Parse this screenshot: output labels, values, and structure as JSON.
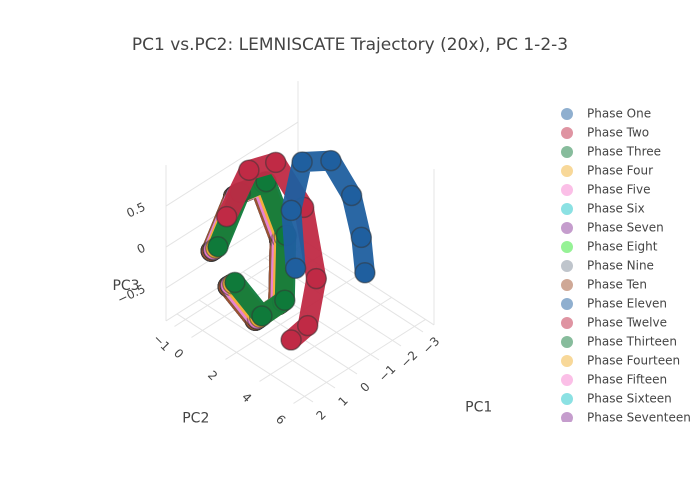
{
  "chart_data": {
    "type": "scatter3d",
    "title": "PC1 vs.PC2: LEMNISCATE Trajectory (20x), PC 1-2-3",
    "xlabel": "PC1",
    "ylabel": "PC2",
    "zlabel": "PC3",
    "xlim": [
      -3.5,
      2.5
    ],
    "ylim": [
      -1.5,
      6.5
    ],
    "zlim": [
      -0.9,
      1
    ],
    "xticks": [
      {
        "value": -3,
        "label": "−3"
      },
      {
        "value": -2,
        "label": "−2"
      },
      {
        "value": -1,
        "label": "−1"
      },
      0,
      1,
      2
    ],
    "yticks": [
      {
        "value": -1,
        "label": "−1"
      },
      0,
      2,
      4,
      6
    ],
    "zticks": [
      {
        "value": -0.5,
        "label": "−0.5"
      },
      0,
      0.5
    ],
    "grid": true,
    "legend": "right",
    "series": [
      {
        "name": "Phase One",
        "color": "#1f5f9f",
        "x": [
          -0.3,
          -0.8,
          -1.6,
          -2.6,
          -3,
          -2.9,
          -2.6
        ],
        "y": [
          2.5,
          1.6,
          1.2,
          1.6,
          2.3,
          3,
          3.6
        ],
        "z": [
          -0.2,
          0.3,
          0.7,
          0.6,
          0.2,
          -0.2,
          -0.5
        ]
      },
      {
        "name": "Phase Two",
        "color": "#c02a45",
        "x": [
          0.9,
          0.2,
          -0.4,
          -0.9,
          -0.7,
          0,
          0.6
        ],
        "y": [
          0,
          0.4,
          1.2,
          2.2,
          3.2,
          3.6,
          3.4
        ],
        "z": [
          0.3,
          0.8,
          0.9,
          0.4,
          -0.3,
          -0.7,
          -0.8
        ]
      },
      {
        "name": "Phase Three",
        "color": "#0f7a3a",
        "x": [
          1.3,
          0.9,
          0.5,
          0.2,
          0.5,
          1,
          1.3
        ],
        "y": [
          0,
          0.8,
          1.8,
          2.6,
          2.9,
          2.2,
          1
        ],
        "z": [
          0,
          0.7,
          0.9,
          0.3,
          -0.4,
          -0.6,
          -0.3
        ]
      },
      {
        "name": "Phase Four",
        "color": "#f2b134",
        "x": [
          1.4,
          1,
          0.6,
          0.3,
          0.6,
          1.1,
          1.4
        ],
        "y": [
          0,
          0.8,
          1.8,
          2.6,
          2.9,
          2.2,
          1
        ],
        "z": [
          0,
          0.7,
          0.9,
          0.3,
          -0.4,
          -0.6,
          -0.3
        ]
      },
      {
        "name": "Phase Five",
        "color": "#f77fd0",
        "x": [
          1.5,
          1.1,
          0.7,
          0.4,
          0.7,
          1.2,
          1.5
        ],
        "y": [
          0,
          0.8,
          1.8,
          2.6,
          2.9,
          2.2,
          1
        ],
        "z": [
          0,
          0.7,
          0.9,
          0.3,
          -0.4,
          -0.6,
          -0.3
        ]
      },
      {
        "name": "Phase Six",
        "color": "#17c3c8",
        "x": [
          1.5,
          1.1,
          0.7,
          0.4,
          0.7,
          1.2,
          1.5
        ],
        "y": [
          0,
          0.8,
          1.8,
          2.6,
          2.9,
          2.2,
          1
        ],
        "z": [
          0,
          0.7,
          0.9,
          0.3,
          -0.4,
          -0.6,
          -0.3
        ]
      },
      {
        "name": "Phase Seven",
        "color": "#8c3b9c",
        "x": [
          1.5,
          1.1,
          0.7,
          0.4,
          0.7,
          1.2,
          1.5
        ],
        "y": [
          0,
          0.8,
          1.8,
          2.6,
          2.9,
          2.2,
          1
        ],
        "z": [
          0,
          0.7,
          0.9,
          0.3,
          -0.4,
          -0.6,
          -0.3
        ]
      },
      {
        "name": "Phase Eight",
        "color": "#2ee62e",
        "x": [
          1.5,
          1.1,
          0.7,
          0.4,
          0.7,
          1.2,
          1.5
        ],
        "y": [
          0,
          0.8,
          1.8,
          2.6,
          2.9,
          2.2,
          1
        ],
        "z": [
          0,
          0.7,
          0.9,
          0.3,
          -0.4,
          -0.6,
          -0.3
        ]
      },
      {
        "name": "Phase Nine",
        "color": "#7f8c99",
        "x": [
          1.5,
          1.1,
          0.7,
          0.4,
          0.7,
          1.2,
          1.5
        ],
        "y": [
          0,
          0.8,
          1.8,
          2.6,
          2.9,
          2.2,
          1
        ],
        "z": [
          0,
          0.7,
          0.9,
          0.3,
          -0.4,
          -0.6,
          -0.3
        ]
      },
      {
        "name": "Phase Ten",
        "color": "#a0522d",
        "x": [
          1.6,
          1.2,
          0.8,
          0.5,
          0.8,
          1.3,
          1.6
        ],
        "y": [
          0,
          0.8,
          1.8,
          2.6,
          2.9,
          2.2,
          1
        ],
        "z": [
          0,
          0.7,
          0.9,
          0.3,
          -0.4,
          -0.6,
          -0.3
        ]
      },
      {
        "name": "Phase Eleven",
        "color": "#1f5f9f",
        "x": [
          1.6,
          1.2,
          0.8,
          0.5,
          0.8,
          1.3,
          1.6
        ],
        "y": [
          0,
          0.8,
          1.8,
          2.6,
          2.9,
          2.2,
          1
        ],
        "z": [
          0,
          0.7,
          0.9,
          0.3,
          -0.4,
          -0.6,
          -0.3
        ]
      },
      {
        "name": "Phase Twelve",
        "color": "#c02a45",
        "x": [
          1.6,
          1.2,
          0.8,
          0.5,
          0.8,
          1.3,
          1.6
        ],
        "y": [
          0,
          0.8,
          1.8,
          2.6,
          2.9,
          2.2,
          1
        ],
        "z": [
          0,
          0.7,
          0.9,
          0.3,
          -0.4,
          -0.6,
          -0.3
        ]
      },
      {
        "name": "Phase Thirteen",
        "color": "#0f7a3a",
        "x": [
          1.6,
          1.2,
          0.8,
          0.5,
          0.8,
          1.3,
          1.6
        ],
        "y": [
          0,
          0.8,
          1.8,
          2.6,
          2.9,
          2.2,
          1
        ],
        "z": [
          0,
          0.7,
          0.9,
          0.3,
          -0.4,
          -0.6,
          -0.3
        ]
      },
      {
        "name": "Phase Fourteen",
        "color": "#f2b134",
        "x": [
          1.6,
          1.2,
          0.8,
          0.5,
          0.8,
          1.3,
          1.6
        ],
        "y": [
          0,
          0.8,
          1.8,
          2.6,
          2.9,
          2.2,
          1
        ],
        "z": [
          0,
          0.7,
          0.9,
          0.3,
          -0.4,
          -0.6,
          -0.3
        ]
      },
      {
        "name": "Phase Fifteen",
        "color": "#f77fd0",
        "x": [
          1.6,
          1.2,
          0.8,
          0.5,
          0.8,
          1.3,
          1.6
        ],
        "y": [
          0,
          0.8,
          1.8,
          2.6,
          2.9,
          2.2,
          1
        ],
        "z": [
          0,
          0.7,
          0.9,
          0.3,
          -0.4,
          -0.6,
          -0.3
        ]
      },
      {
        "name": "Phase Sixteen",
        "color": "#17c3c8",
        "x": [
          1.6,
          1.2,
          0.8,
          0.5,
          0.8,
          1.3,
          1.6
        ],
        "y": [
          0,
          0.8,
          1.8,
          2.6,
          2.9,
          2.2,
          1
        ],
        "z": [
          0,
          0.7,
          0.9,
          0.3,
          -0.4,
          -0.6,
          -0.3
        ]
      },
      {
        "name": "Phase Seventeen",
        "color": "#8c3b9c",
        "x": [
          1.6,
          1.2,
          0.8,
          0.5,
          0.8,
          1.3,
          1.6
        ],
        "y": [
          0,
          0.8,
          1.8,
          2.6,
          2.9,
          2.2,
          1
        ],
        "z": [
          0,
          0.7,
          0.9,
          0.3,
          -0.4,
          -0.6,
          -0.3
        ]
      }
    ]
  }
}
